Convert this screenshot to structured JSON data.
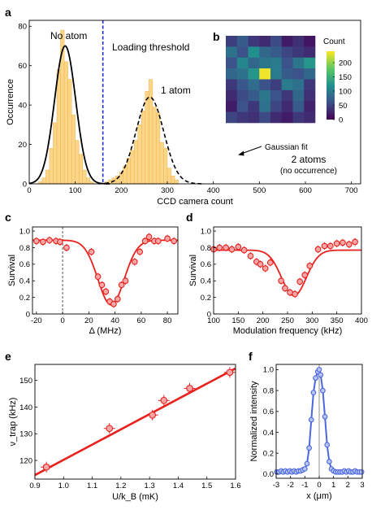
{
  "colors": {
    "histogram": "#fbd588",
    "histogram_edge": "#f2b44d",
    "fit": "#000000",
    "threshold": "#1f2fd0",
    "red_series": "#e8211e",
    "red_marker_fill": "#f6a6a6",
    "blue_series": "#4a66e0",
    "blue_marker_fill": "#b8c6f4"
  },
  "chart_data": [
    {
      "id": "a",
      "panel_label": "a",
      "type": "bar",
      "xlabel": "CCD camera count",
      "ylabel": "Occurrence",
      "xlim": [
        0,
        720
      ],
      "ylim": [
        0,
        83
      ],
      "xticks": [
        0,
        100,
        200,
        300,
        400,
        500,
        600,
        700
      ],
      "yticks": [
        0,
        20,
        40,
        60,
        80
      ],
      "bin_width": 8,
      "bins": [
        [
          24,
          1
        ],
        [
          32,
          3
        ],
        [
          40,
          7
        ],
        [
          48,
          18
        ],
        [
          56,
          31
        ],
        [
          64,
          58
        ],
        [
          72,
          78
        ],
        [
          80,
          62
        ],
        [
          88,
          53
        ],
        [
          96,
          35
        ],
        [
          104,
          22
        ],
        [
          112,
          15
        ],
        [
          120,
          7
        ],
        [
          128,
          3
        ],
        [
          136,
          1
        ],
        [
          168,
          1
        ],
        [
          176,
          2
        ],
        [
          184,
          3
        ],
        [
          192,
          4
        ],
        [
          200,
          6
        ],
        [
          208,
          9
        ],
        [
          216,
          13
        ],
        [
          224,
          17
        ],
        [
          232,
          22
        ],
        [
          240,
          30
        ],
        [
          248,
          37
        ],
        [
          256,
          47
        ],
        [
          264,
          53
        ],
        [
          272,
          39
        ],
        [
          280,
          36
        ],
        [
          288,
          21
        ],
        [
          296,
          18
        ],
        [
          304,
          8
        ],
        [
          312,
          4
        ],
        [
          320,
          2
        ]
      ],
      "fits": [
        {
          "amplitude": 70,
          "center": 78,
          "sigma": 23,
          "style": "solid"
        },
        {
          "amplitude": 44,
          "center": 262,
          "sigma": 30,
          "style": "dashed"
        }
      ],
      "threshold_x": 160,
      "annotations": {
        "no_atom": "No atom",
        "loading_threshold": "Loading threshold",
        "one_atom": "1 atom",
        "gaussian_fit": "Gaussian fit",
        "two_atoms": "2 atoms",
        "no_occurrence": "(no occurrence)"
      }
    },
    {
      "id": "b",
      "panel_label": "b",
      "type": "heatmap",
      "colorbar_label": "Count",
      "colorbar_ticks": [
        0,
        50,
        100,
        150,
        200
      ],
      "zlim": [
        0,
        240
      ],
      "values": [
        [
          45,
          70,
          40,
          30,
          55,
          20,
          35,
          15
        ],
        [
          90,
          60,
          120,
          80,
          70,
          50,
          40,
          30
        ],
        [
          60,
          110,
          80,
          95,
          100,
          60,
          95,
          125
        ],
        [
          80,
          90,
          125,
          235,
          100,
          70,
          60,
          80
        ],
        [
          40,
          65,
          85,
          60,
          45,
          100,
          90,
          40
        ],
        [
          30,
          55,
          70,
          95,
          60,
          40,
          80,
          35
        ],
        [
          20,
          60,
          40,
          90,
          50,
          30,
          70,
          25
        ],
        [
          50,
          40,
          35,
          55,
          30,
          20,
          40,
          30
        ]
      ]
    },
    {
      "id": "c",
      "panel_label": "c",
      "type": "scatter",
      "xlabel": "Δ (MHz)",
      "ylabel": "Survival",
      "xlim": [
        -23,
        88
      ],
      "ylim": [
        0,
        1.05
      ],
      "xticks": [
        -20,
        0,
        20,
        40,
        60,
        80
      ],
      "yticks": [
        0,
        0.2,
        0.4,
        0.6,
        0.8,
        1.0
      ],
      "ytick_labels": [
        "0",
        "0.2",
        "0.4",
        "0.6",
        "0.8",
        "1.0"
      ],
      "points": [
        [
          -20,
          0.88
        ],
        [
          -15,
          0.87
        ],
        [
          -10,
          0.89
        ],
        [
          -5,
          0.88
        ],
        [
          -2,
          0.87
        ],
        [
          3,
          0.8
        ],
        [
          22,
          0.75
        ],
        [
          27,
          0.45
        ],
        [
          30,
          0.35
        ],
        [
          33,
          0.27
        ],
        [
          36,
          0.15
        ],
        [
          39,
          0.12
        ],
        [
          42,
          0.18
        ],
        [
          45,
          0.35
        ],
        [
          48,
          0.4
        ],
        [
          55,
          0.63
        ],
        [
          59,
          0.75
        ],
        [
          63,
          0.88
        ],
        [
          66,
          0.93
        ],
        [
          70,
          0.88
        ],
        [
          73,
          0.88
        ],
        [
          80,
          0.91
        ],
        [
          85,
          0.88
        ]
      ],
      "error": 0.045,
      "fit": {
        "baseline": 0.89,
        "depth": 0.78,
        "center": 37,
        "sigma": 10
      },
      "vline_x": 0
    },
    {
      "id": "d",
      "panel_label": "d",
      "type": "scatter",
      "xlabel": "Modulation frequency (kHz)",
      "ylabel": "Survival",
      "xlim": [
        100,
        400
      ],
      "ylim": [
        0,
        1.05
      ],
      "xticks": [
        100,
        150,
        200,
        250,
        300,
        350,
        400
      ],
      "yticks": [
        0,
        0.2,
        0.4,
        0.6,
        0.8,
        1.0
      ],
      "ytick_labels": [
        "0",
        "0.2",
        "0.4",
        "0.6",
        "0.8",
        "1.0"
      ],
      "points": [
        [
          100,
          0.78
        ],
        [
          112,
          0.8
        ],
        [
          125,
          0.8
        ],
        [
          137,
          0.78
        ],
        [
          150,
          0.81
        ],
        [
          162,
          0.77
        ],
        [
          175,
          0.7
        ],
        [
          187,
          0.63
        ],
        [
          195,
          0.6
        ],
        [
          205,
          0.55
        ],
        [
          215,
          0.62
        ],
        [
          237,
          0.4
        ],
        [
          245,
          0.31
        ],
        [
          255,
          0.26
        ],
        [
          265,
          0.24
        ],
        [
          275,
          0.39
        ],
        [
          285,
          0.47
        ],
        [
          295,
          0.58
        ],
        [
          312,
          0.78
        ],
        [
          325,
          0.82
        ],
        [
          337,
          0.82
        ],
        [
          350,
          0.85
        ],
        [
          362,
          0.86
        ],
        [
          375,
          0.84
        ],
        [
          387,
          0.87
        ]
      ],
      "error": 0.045,
      "fit": {
        "baseline": 0.77,
        "depth": 0.55,
        "center": 263,
        "sigma": 25
      }
    },
    {
      "id": "e",
      "panel_label": "e",
      "type": "scatter",
      "xlabel": "U/k_B (mK)",
      "ylabel": "ν_trap (kHz)",
      "xlim": [
        0.9,
        1.6
      ],
      "ylim": [
        113,
        156
      ],
      "xticks": [
        0.9,
        1.0,
        1.1,
        1.2,
        1.3,
        1.4,
        1.5,
        1.6
      ],
      "xtick_labels": [
        "0.9",
        "1.0",
        "1.1",
        "1.2",
        "1.3",
        "1.4",
        "1.5",
        "1.6"
      ],
      "yticks": [
        120,
        130,
        140,
        150
      ],
      "points": [
        [
          0.94,
          117.5
        ],
        [
          1.16,
          132.0
        ],
        [
          1.31,
          137.0
        ],
        [
          1.35,
          142.5
        ],
        [
          1.44,
          147.0
        ],
        [
          1.58,
          153.0
        ]
      ],
      "xerr": 0.02,
      "yerr": 2.0,
      "fit": {
        "x": [
          0.9,
          1.6
        ],
        "y": [
          114.5,
          154.5
        ]
      }
    },
    {
      "id": "f",
      "panel_label": "f",
      "type": "line",
      "xlabel": "x (μm)",
      "ylabel": "Normalized intensity",
      "xlim": [
        -3,
        3
      ],
      "ylim": [
        -0.04,
        1.05
      ],
      "xticks": [
        -3,
        -2,
        -1,
        0,
        1,
        2,
        3
      ],
      "yticks": [
        0,
        0.2,
        0.4,
        0.6,
        0.8,
        1.0
      ],
      "ytick_labels": [
        "0.0",
        "0.2",
        "0.4",
        "0.6",
        "0.8",
        "1.0"
      ],
      "points": [
        [
          -2.95,
          0.02
        ],
        [
          -2.8,
          0.02
        ],
        [
          -2.65,
          0.03
        ],
        [
          -2.5,
          0.02
        ],
        [
          -2.35,
          0.03
        ],
        [
          -2.2,
          0.02
        ],
        [
          -2.05,
          0.03
        ],
        [
          -1.9,
          0.02
        ],
        [
          -1.75,
          0.03
        ],
        [
          -1.6,
          0.02
        ],
        [
          -1.45,
          0.03
        ],
        [
          -1.3,
          0.03
        ],
        [
          -1.15,
          0.04
        ],
        [
          -1.0,
          0.05
        ],
        [
          -0.85,
          0.1
        ],
        [
          -0.7,
          0.25
        ],
        [
          -0.55,
          0.52
        ],
        [
          -0.4,
          0.78
        ],
        [
          -0.25,
          0.92
        ],
        [
          -0.1,
          0.98
        ],
        [
          0.0,
          1.0
        ],
        [
          0.1,
          0.95
        ],
        [
          0.25,
          0.8
        ],
        [
          0.4,
          0.55
        ],
        [
          0.55,
          0.28
        ],
        [
          0.7,
          0.12
        ],
        [
          0.85,
          0.05
        ],
        [
          1.0,
          0.03
        ],
        [
          1.15,
          0.02
        ],
        [
          1.3,
          0.02
        ],
        [
          1.45,
          0.02
        ],
        [
          1.6,
          0.02
        ],
        [
          1.75,
          0.03
        ],
        [
          1.9,
          0.02
        ],
        [
          2.05,
          0.03
        ],
        [
          2.2,
          0.02
        ],
        [
          2.35,
          0.02
        ],
        [
          2.5,
          0.03
        ],
        [
          2.65,
          0.02
        ],
        [
          2.8,
          0.02
        ],
        [
          2.95,
          0.02
        ]
      ],
      "vline_x": 0
    }
  ]
}
